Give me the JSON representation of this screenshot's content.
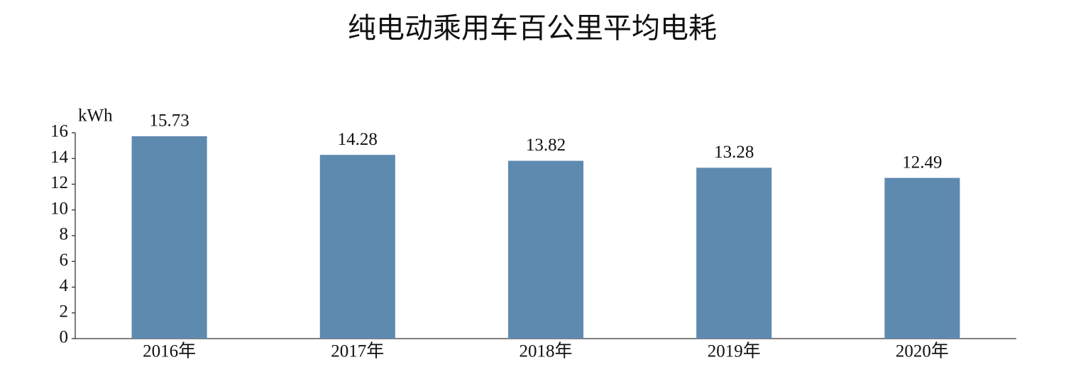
{
  "chart_data": {
    "type": "bar",
    "title": "纯电动乘用车百公里平均电耗",
    "y_label": "kWh",
    "categories": [
      "2016年",
      "2017年",
      "2018年",
      "2019年",
      "2020年"
    ],
    "values": [
      15.73,
      14.28,
      13.82,
      13.28,
      12.49
    ],
    "color": "#5f8ab0",
    "ylim": [
      0,
      16
    ],
    "yticks": [
      0,
      2,
      4,
      6,
      8,
      10,
      12,
      14,
      16
    ],
    "grid": false
  }
}
